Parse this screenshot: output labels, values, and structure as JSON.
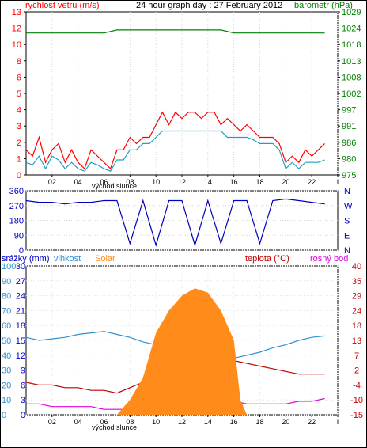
{
  "chart_data": [
    {
      "type": "line",
      "title": "24 hour graph day : 27 February 2012",
      "left_axis_label": "rychlost vetru (m/s)",
      "right_axis_label": "barometr (hPa)",
      "x_ticks": [
        "02",
        "04",
        "06",
        "08",
        "10",
        "12",
        "14",
        "16",
        "18",
        "20",
        "22",
        "I"
      ],
      "x_note": "východ slunce",
      "left_ticks": [
        "0",
        "1",
        "2",
        "3",
        "4",
        "5",
        "6",
        "8",
        "10",
        "12",
        "13"
      ],
      "right_ticks": [
        "975",
        "980",
        "986",
        "991",
        "997",
        "1002",
        "1008",
        "1013",
        "1018",
        "1024",
        "1029"
      ],
      "ylim_left": [
        0,
        13
      ],
      "ylim_right": [
        975,
        1029
      ],
      "series": [
        {
          "name": "rychlost vetru (m/s)",
          "color": "#ff0000",
          "axis": "left",
          "x_hours": [
            0,
            0.5,
            1,
            1.5,
            2,
            2.5,
            3,
            3.5,
            4,
            4.5,
            5,
            5.5,
            6,
            6.5,
            7,
            7.5,
            8,
            8.5,
            9,
            9.5,
            10,
            10.5,
            11,
            11.5,
            12,
            12.5,
            13,
            13.5,
            14,
            14.5,
            15,
            15.5,
            16,
            16.5,
            17,
            17.5,
            18,
            18.5,
            19,
            19.5,
            20,
            20.5,
            21,
            21.5,
            22,
            22.5,
            23
          ],
          "values": [
            2,
            1.5,
            3,
            1,
            2,
            2.5,
            1,
            2,
            1,
            0.5,
            2,
            1.5,
            1,
            0.5,
            2,
            2,
            3,
            2.5,
            3,
            3,
            4,
            5,
            4,
            5,
            4.5,
            5,
            5,
            4.5,
            5,
            5,
            4,
            4.5,
            4,
            3.5,
            4,
            3.5,
            3,
            3,
            3,
            2.5,
            1,
            1.5,
            1,
            2,
            1.5,
            2,
            2.5
          ]
        },
        {
          "name": "vítr nárazy",
          "color": "#20a0c0",
          "axis": "left",
          "x_hours": [
            0,
            0.5,
            1,
            1.5,
            2,
            2.5,
            3,
            3.5,
            4,
            4.5,
            5,
            5.5,
            6,
            6.5,
            7,
            7.5,
            8,
            8.5,
            9,
            9.5,
            10,
            10.5,
            11,
            11.5,
            12,
            12.5,
            13,
            13.5,
            14,
            14.5,
            15,
            15.5,
            16,
            16.5,
            17,
            17.5,
            18,
            18.5,
            19,
            19.5,
            20,
            20.5,
            21,
            21.5,
            22,
            22.5,
            23
          ],
          "values": [
            1,
            0.8,
            1.5,
            0.5,
            1.5,
            1.2,
            0.5,
            1,
            0.5,
            0.3,
            1,
            0.8,
            0.5,
            0.3,
            1.2,
            1.2,
            2,
            2,
            2.5,
            2.5,
            3,
            3.5,
            3.5,
            3.5,
            3.5,
            3.5,
            3.5,
            3.5,
            3.5,
            3.5,
            3.5,
            3,
            3,
            3,
            3,
            2.8,
            2.5,
            2.5,
            2.5,
            2,
            0.5,
            1,
            0.5,
            1,
            1,
            1,
            1.2
          ]
        },
        {
          "name": "barometr (hPa)",
          "color": "#008000",
          "axis": "right",
          "x_hours": [
            0,
            1,
            2,
            3,
            4,
            5,
            6,
            7,
            8,
            9,
            10,
            11,
            12,
            13,
            14,
            15,
            16,
            17,
            18,
            19,
            20,
            21,
            22,
            23
          ],
          "values": [
            1022,
            1022,
            1022,
            1022,
            1022,
            1022,
            1022,
            1023,
            1023,
            1023,
            1023,
            1023,
            1023,
            1023,
            1023,
            1023,
            1022,
            1022,
            1022,
            1022,
            1022,
            1022,
            1022,
            1022
          ]
        }
      ]
    },
    {
      "type": "line",
      "title": "směr větru",
      "left_ticks": [
        "0",
        "90",
        "180",
        "270",
        "360"
      ],
      "right_ticks": [
        "N",
        "W",
        "S",
        "E",
        "N"
      ],
      "ylim": [
        0,
        360
      ],
      "series": [
        {
          "name": "směr větru",
          "color": "#0000c0",
          "x_hours": [
            0,
            1,
            2,
            3,
            4,
            5,
            6,
            7,
            8,
            9,
            10,
            11,
            12,
            13,
            14,
            15,
            16,
            17,
            18,
            19,
            20,
            21,
            22,
            23
          ],
          "values": [
            300,
            290,
            290,
            280,
            290,
            290,
            300,
            300,
            40,
            300,
            30,
            300,
            300,
            30,
            300,
            40,
            300,
            300,
            40,
            300,
            310,
            300,
            290,
            280
          ]
        }
      ]
    },
    {
      "type": "line",
      "left_axis_labels": [
        "srážky (mm)",
        "vlhkost",
        "Solar"
      ],
      "right_axis_labels": [
        "teplota (°C)",
        "rosný bod"
      ],
      "x_ticks": [
        "02",
        "04",
        "06",
        "08",
        "10",
        "12",
        "14",
        "16",
        "18",
        "20",
        "22",
        "I"
      ],
      "x_note": "východ slunce",
      "rain_ticks": [
        "0",
        "3",
        "6",
        "9",
        "12",
        "15",
        "18",
        "21",
        "24",
        "27",
        "30"
      ],
      "hum_ticks": [
        "0",
        "10",
        "20",
        "30",
        "40",
        "50",
        "60",
        "70",
        "80",
        "90",
        "100"
      ],
      "temp_ticks": [
        "-15",
        "-10",
        "-4",
        "2",
        "7",
        "13",
        "18",
        "24",
        "29",
        "35",
        "40"
      ],
      "series": [
        {
          "name": "vlhkost",
          "color": "#3090d0",
          "x_hours": [
            0,
            1,
            2,
            3,
            4,
            5,
            6,
            7,
            8,
            9,
            10,
            11,
            12,
            13,
            14,
            15,
            16,
            17,
            18,
            19,
            20,
            21,
            22,
            23
          ],
          "values": [
            52,
            50,
            51,
            52,
            54,
            55,
            56,
            54,
            52,
            49,
            47,
            44,
            42,
            39,
            35,
            35,
            38,
            40,
            42,
            45,
            47,
            50,
            52,
            53
          ]
        },
        {
          "name": "teplota (°C)",
          "color": "#c00000",
          "x_hours": [
            0,
            1,
            2,
            3,
            4,
            5,
            6,
            7,
            8,
            9,
            10,
            11,
            12,
            13,
            14,
            15,
            16,
            17,
            18,
            19,
            20,
            21,
            22,
            23
          ],
          "values": [
            -3,
            -4,
            -4,
            -5,
            -5,
            -6,
            -6,
            -7,
            -5,
            -3,
            0,
            2,
            4,
            5,
            6,
            6,
            5,
            4,
            3,
            2,
            1,
            0,
            0,
            0
          ]
        },
        {
          "name": "rosný bod",
          "color": "#e000e0",
          "x_hours": [
            0,
            1,
            2,
            3,
            4,
            5,
            6,
            7,
            8,
            9,
            10,
            11,
            12,
            13,
            14,
            15,
            16,
            17,
            18,
            19,
            20,
            21,
            22,
            23
          ],
          "values": [
            -11,
            -11,
            -12,
            -12,
            -12,
            -12,
            -13,
            -13,
            -13,
            -12,
            -11,
            -10,
            -9,
            -9,
            -9,
            -10,
            -10,
            -11,
            -11,
            -11,
            -11,
            -10,
            -10,
            -9
          ]
        },
        {
          "name": "Solar",
          "color": "#ff8c1a",
          "x_hours": [
            7,
            8,
            9,
            10,
            11,
            12,
            13,
            14,
            15,
            16,
            16.5,
            17
          ],
          "values": [
            0,
            10,
            25,
            55,
            70,
            80,
            85,
            82,
            70,
            50,
            10,
            0
          ]
        },
        {
          "name": "srážky (mm)",
          "color": "#ff8c1a",
          "x_hours": [],
          "values": []
        }
      ]
    }
  ]
}
